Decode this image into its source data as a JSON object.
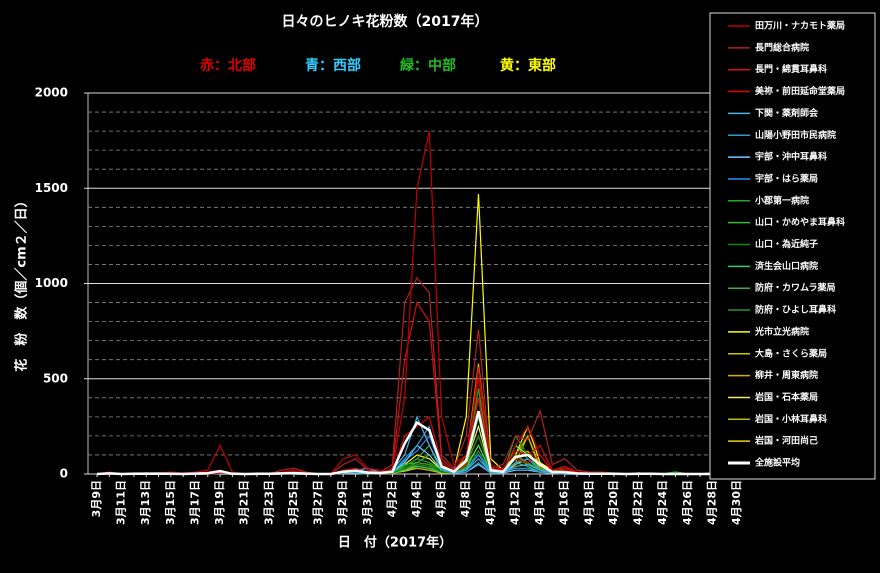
{
  "chart_data": {
    "type": "line",
    "title": "日々のヒノキ花粉数（2017年）",
    "annotations": [
      {
        "text": "赤：北部",
        "color": "#e00000"
      },
      {
        "text": "青：西部",
        "color": "#33ccff"
      },
      {
        "text": "緑：中部",
        "color": "#22bb22"
      },
      {
        "text": "黄：東部",
        "color": "#ffff00"
      }
    ],
    "x_label": "日　付（2017年）",
    "y_label": "花　粉　数（個／cm２／日）",
    "categories": [
      "3月9日",
      null,
      "3月11日",
      null,
      "3月13日",
      null,
      "3月15日",
      null,
      "3月17日",
      null,
      "3月19日",
      null,
      "3月21日",
      null,
      "3月23日",
      null,
      "3月25日",
      null,
      "3月27日",
      null,
      "3月29日",
      null,
      "3月31日",
      null,
      "4月2日",
      null,
      "4月4日",
      null,
      "4月6日",
      null,
      "4月8日",
      null,
      "4月10日",
      null,
      "4月12日",
      null,
      "4月14日",
      null,
      "4月16日",
      null,
      "4月18日",
      null,
      "4月20日",
      null,
      "4月22日",
      null,
      "4月24日",
      null,
      "4月26日",
      null,
      "4月28日",
      null,
      "4月30日"
    ],
    "ylim": [
      0,
      2000
    ],
    "yticks": [
      0,
      500,
      1000,
      1500,
      2000
    ],
    "yminor": [
      100,
      200,
      300,
      400,
      600,
      700,
      800,
      900,
      1100,
      1200,
      1300,
      1400,
      1600,
      1700,
      1800,
      1900
    ],
    "grid": true,
    "series": [
      {
        "name": "田万川・ナカモト薬局",
        "color": "#c00000",
        "values": [
          0,
          0,
          0,
          0,
          0,
          5,
          10,
          5,
          10,
          20,
          150,
          10,
          0,
          0,
          0,
          10,
          20,
          5,
          0,
          0,
          80,
          100,
          30,
          20,
          20,
          400,
          1500,
          1800,
          300,
          50,
          100,
          500,
          50,
          20,
          150,
          250,
          100,
          20,
          30,
          10,
          5,
          5,
          0,
          0,
          5,
          0,
          0,
          0,
          0,
          0,
          0,
          0,
          0
        ]
      },
      {
        "name": "長門総合病院",
        "color": "#b22222",
        "values": [
          0,
          10,
          0,
          0,
          0,
          0,
          0,
          0,
          5,
          10,
          20,
          0,
          0,
          5,
          0,
          20,
          30,
          10,
          0,
          0,
          50,
          80,
          20,
          10,
          50,
          900,
          1030,
          950,
          100,
          30,
          200,
          760,
          30,
          50,
          200,
          180,
          330,
          50,
          80,
          20,
          10,
          10,
          5,
          0,
          0,
          5,
          0,
          0,
          0,
          0,
          0,
          0,
          0
        ]
      },
      {
        "name": "長門・綿貫耳鼻科",
        "color": "#d01010",
        "values": [
          0,
          0,
          0,
          0,
          0,
          0,
          0,
          0,
          0,
          5,
          10,
          0,
          0,
          0,
          0,
          5,
          10,
          0,
          0,
          0,
          20,
          30,
          10,
          5,
          30,
          600,
          900,
          800,
          80,
          20,
          100,
          400,
          20,
          30,
          120,
          100,
          150,
          20,
          40,
          10,
          5,
          0,
          0,
          0,
          0,
          0,
          0,
          0,
          0,
          0,
          0,
          0,
          0
        ]
      },
      {
        "name": "美祢・前田延命堂薬局",
        "color": "#e00000",
        "values": [
          0,
          0,
          0,
          0,
          0,
          0,
          0,
          0,
          0,
          0,
          5,
          0,
          0,
          0,
          0,
          0,
          5,
          0,
          0,
          0,
          10,
          20,
          5,
          5,
          10,
          200,
          250,
          300,
          60,
          10,
          50,
          560,
          30,
          20,
          80,
          60,
          100,
          10,
          20,
          5,
          0,
          0,
          0,
          0,
          0,
          0,
          0,
          0,
          0,
          0,
          0,
          0,
          0
        ]
      },
      {
        "name": "下関・薬剤師会",
        "color": "#4fb0e0",
        "values": [
          0,
          0,
          0,
          5,
          5,
          5,
          0,
          0,
          0,
          0,
          5,
          0,
          0,
          0,
          0,
          0,
          0,
          0,
          0,
          0,
          10,
          20,
          30,
          10,
          20,
          100,
          300,
          150,
          30,
          10,
          20,
          80,
          10,
          10,
          40,
          50,
          20,
          10,
          0,
          0,
          0,
          0,
          0,
          0,
          0,
          0,
          0,
          0,
          0,
          0,
          0,
          0,
          0
        ]
      },
      {
        "name": "山陽小野田市民病院",
        "color": "#3399cc",
        "values": [
          0,
          0,
          0,
          0,
          5,
          0,
          0,
          0,
          0,
          0,
          5,
          0,
          0,
          0,
          0,
          0,
          5,
          0,
          0,
          0,
          5,
          10,
          5,
          5,
          10,
          80,
          150,
          250,
          20,
          5,
          10,
          60,
          5,
          10,
          30,
          30,
          10,
          5,
          0,
          0,
          0,
          0,
          0,
          0,
          0,
          0,
          0,
          0,
          0,
          0,
          0,
          0,
          0
        ]
      },
      {
        "name": "宇部・沖中耳鼻科",
        "color": "#66ccff",
        "values": [
          0,
          5,
          0,
          0,
          0,
          0,
          0,
          0,
          0,
          5,
          0,
          0,
          0,
          0,
          0,
          5,
          0,
          0,
          0,
          0,
          10,
          5,
          0,
          5,
          10,
          60,
          150,
          100,
          20,
          5,
          10,
          50,
          5,
          5,
          20,
          20,
          10,
          5,
          0,
          0,
          0,
          0,
          0,
          0,
          0,
          0,
          0,
          0,
          0,
          0,
          0,
          0,
          0
        ]
      },
      {
        "name": "宇部・はら薬局",
        "color": "#1e90ff",
        "values": [
          0,
          0,
          0,
          0,
          5,
          0,
          0,
          0,
          0,
          0,
          5,
          0,
          0,
          0,
          0,
          0,
          5,
          0,
          0,
          0,
          5,
          10,
          5,
          5,
          10,
          70,
          120,
          200,
          30,
          10,
          20,
          100,
          10,
          10,
          60,
          80,
          20,
          5,
          0,
          0,
          0,
          0,
          0,
          0,
          0,
          0,
          0,
          0,
          0,
          0,
          0,
          0,
          0
        ]
      },
      {
        "name": "小郡第一病院",
        "color": "#22aa22",
        "values": [
          0,
          0,
          0,
          0,
          5,
          0,
          0,
          0,
          0,
          0,
          20,
          0,
          0,
          0,
          0,
          0,
          5,
          0,
          0,
          0,
          5,
          10,
          5,
          5,
          10,
          40,
          80,
          60,
          20,
          10,
          60,
          450,
          20,
          10,
          100,
          50,
          20,
          10,
          5,
          0,
          0,
          5,
          0,
          0,
          5,
          0,
          0,
          10,
          0,
          0,
          5,
          0,
          0
        ]
      },
      {
        "name": "山口・かめやま耳鼻科",
        "color": "#33bb33",
        "values": [
          0,
          5,
          0,
          0,
          0,
          0,
          0,
          0,
          0,
          5,
          0,
          0,
          0,
          0,
          0,
          5,
          0,
          0,
          0,
          0,
          10,
          5,
          0,
          5,
          10,
          50,
          60,
          100,
          20,
          10,
          50,
          300,
          10,
          10,
          150,
          80,
          30,
          10,
          5,
          0,
          0,
          0,
          0,
          0,
          0,
          0,
          0,
          0,
          0,
          0,
          0,
          0,
          0
        ]
      },
      {
        "name": "山口・為近純子",
        "color": "#118811",
        "values": [
          0,
          0,
          0,
          0,
          5,
          0,
          0,
          0,
          0,
          0,
          5,
          0,
          0,
          0,
          0,
          0,
          5,
          0,
          0,
          0,
          5,
          10,
          5,
          5,
          5,
          30,
          50,
          40,
          10,
          5,
          40,
          200,
          10,
          5,
          80,
          50,
          20,
          5,
          5,
          0,
          0,
          5,
          0,
          0,
          5,
          0,
          0,
          10,
          0,
          0,
          5,
          0,
          0
        ]
      },
      {
        "name": "済生会山口病院",
        "color": "#2ecc71",
        "values": [
          0,
          5,
          0,
          0,
          0,
          0,
          0,
          0,
          0,
          5,
          0,
          0,
          0,
          0,
          0,
          5,
          0,
          0,
          0,
          0,
          10,
          5,
          0,
          5,
          5,
          20,
          40,
          30,
          10,
          5,
          30,
          150,
          10,
          5,
          60,
          40,
          10,
          5,
          0,
          0,
          0,
          0,
          0,
          0,
          0,
          0,
          0,
          0,
          0,
          0,
          0,
          0,
          0
        ]
      },
      {
        "name": "防府・カワムラ薬局",
        "color": "#3cb043",
        "values": [
          0,
          0,
          0,
          0,
          5,
          0,
          0,
          0,
          0,
          0,
          5,
          0,
          0,
          0,
          0,
          0,
          5,
          0,
          0,
          0,
          5,
          10,
          5,
          5,
          5,
          40,
          80,
          150,
          10,
          5,
          30,
          100,
          5,
          5,
          100,
          60,
          20,
          5,
          30,
          10,
          0,
          5,
          0,
          0,
          5,
          0,
          0,
          10,
          0,
          0,
          5,
          0,
          0
        ]
      },
      {
        "name": "防府・ひよし耳鼻科",
        "color": "#229922",
        "values": [
          0,
          5,
          0,
          0,
          0,
          0,
          0,
          0,
          0,
          5,
          0,
          0,
          0,
          0,
          0,
          5,
          0,
          0,
          0,
          0,
          10,
          5,
          0,
          5,
          5,
          30,
          60,
          50,
          10,
          5,
          20,
          120,
          5,
          5,
          200,
          100,
          20,
          5,
          20,
          5,
          0,
          0,
          0,
          0,
          0,
          0,
          0,
          0,
          0,
          0,
          0,
          0,
          0
        ]
      },
      {
        "name": "光市立光病院",
        "color": "#ffff00",
        "values": [
          0,
          0,
          0,
          0,
          5,
          0,
          0,
          0,
          0,
          0,
          5,
          0,
          0,
          0,
          0,
          0,
          5,
          0,
          0,
          0,
          5,
          10,
          5,
          5,
          10,
          50,
          100,
          80,
          20,
          20,
          300,
          1470,
          80,
          20,
          100,
          250,
          60,
          20,
          10,
          5,
          0,
          5,
          0,
          0,
          5,
          0,
          0,
          10,
          0,
          0,
          5,
          0,
          0
        ]
      },
      {
        "name": "大島・さくら薬局",
        "color": "#c8c800",
        "values": [
          0,
          5,
          0,
          0,
          0,
          0,
          0,
          0,
          0,
          5,
          0,
          0,
          0,
          0,
          0,
          5,
          0,
          0,
          0,
          0,
          10,
          5,
          0,
          5,
          5,
          30,
          60,
          50,
          10,
          10,
          100,
          400,
          20,
          10,
          80,
          120,
          30,
          10,
          5,
          0,
          0,
          0,
          0,
          0,
          0,
          0,
          0,
          0,
          0,
          0,
          0,
          0,
          0
        ]
      },
      {
        "name": "柳井・周東病院",
        "color": "#d4b000",
        "values": [
          0,
          0,
          0,
          0,
          5,
          0,
          0,
          0,
          0,
          0,
          5,
          0,
          0,
          0,
          0,
          0,
          5,
          0,
          0,
          0,
          5,
          10,
          5,
          5,
          5,
          20,
          50,
          40,
          10,
          10,
          80,
          580,
          30,
          10,
          60,
          200,
          40,
          10,
          5,
          0,
          0,
          5,
          0,
          0,
          5,
          0,
          0,
          10,
          0,
          0,
          5,
          0,
          0
        ]
      },
      {
        "name": "岩国・石本薬局",
        "color": "#eeee66",
        "values": [
          0,
          5,
          0,
          0,
          0,
          0,
          0,
          0,
          0,
          5,
          0,
          0,
          0,
          0,
          0,
          5,
          0,
          0,
          0,
          0,
          10,
          5,
          0,
          5,
          5,
          20,
          40,
          30,
          10,
          5,
          60,
          250,
          10,
          5,
          150,
          100,
          20,
          5,
          0,
          0,
          0,
          0,
          0,
          0,
          0,
          0,
          0,
          0,
          0,
          0,
          0,
          0,
          0
        ]
      },
      {
        "name": "岩国・小林耳鼻科",
        "color": "#bbbb00",
        "values": [
          0,
          0,
          0,
          0,
          5,
          0,
          0,
          0,
          0,
          0,
          5,
          0,
          0,
          0,
          0,
          0,
          5,
          0,
          0,
          0,
          5,
          10,
          5,
          5,
          5,
          20,
          30,
          20,
          5,
          5,
          50,
          200,
          10,
          5,
          100,
          200,
          20,
          5,
          0,
          0,
          0,
          5,
          0,
          0,
          5,
          0,
          0,
          10,
          0,
          0,
          5,
          0,
          0
        ]
      },
      {
        "name": "岩国・河田尚己",
        "color": "#e6d200",
        "values": [
          0,
          5,
          0,
          0,
          0,
          0,
          0,
          0,
          0,
          5,
          0,
          0,
          0,
          0,
          0,
          5,
          0,
          0,
          0,
          0,
          10,
          5,
          0,
          5,
          5,
          15,
          30,
          20,
          5,
          5,
          40,
          150,
          10,
          5,
          50,
          80,
          20,
          5,
          0,
          0,
          0,
          0,
          0,
          0,
          0,
          0,
          0,
          0,
          0,
          0,
          0,
          0,
          0
        ]
      },
      {
        "name": "全施設平均",
        "color": "#ffffff",
        "values": [
          0,
          3,
          0,
          1,
          1,
          2,
          1,
          0,
          2,
          4,
          15,
          1,
          0,
          1,
          1,
          3,
          5,
          2,
          0,
          0,
          12,
          18,
          8,
          5,
          12,
          160,
          270,
          230,
          40,
          12,
          70,
          330,
          20,
          12,
          90,
          100,
          50,
          10,
          10,
          3,
          1,
          1,
          1,
          0,
          1,
          1,
          0,
          0,
          0,
          0,
          0,
          0,
          0
        ]
      }
    ]
  }
}
